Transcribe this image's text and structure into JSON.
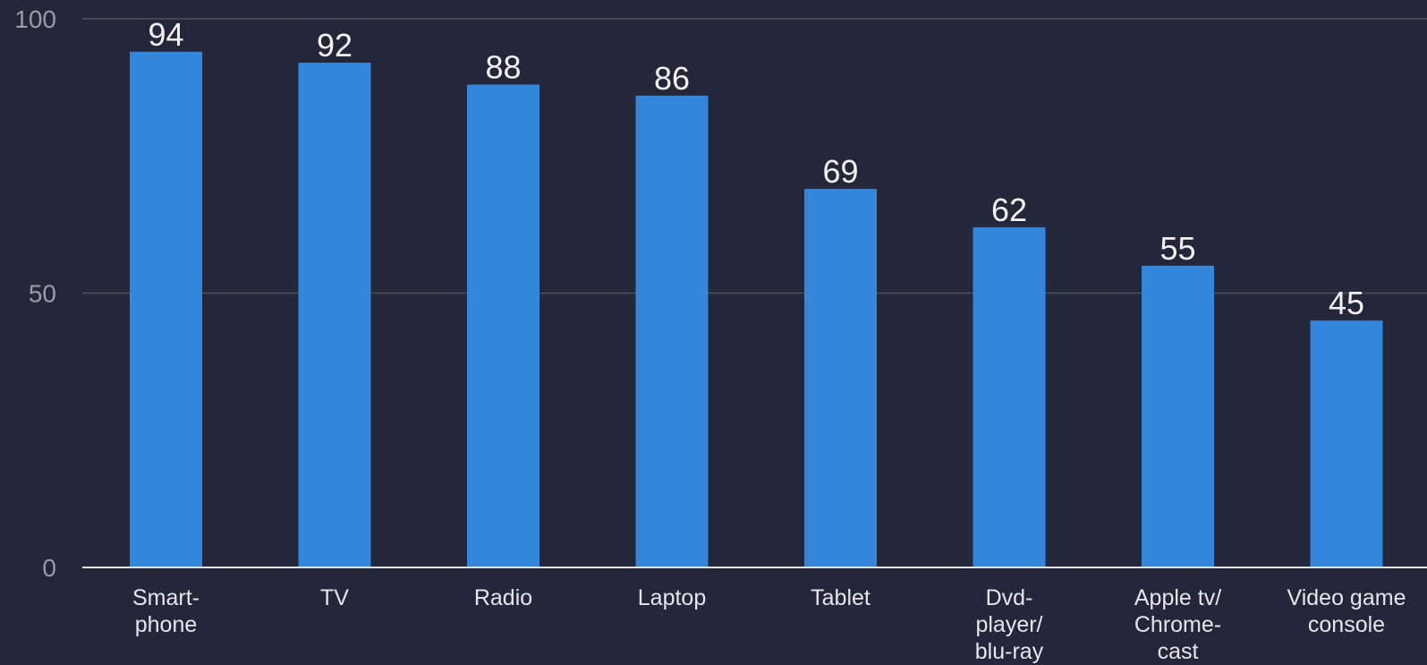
{
  "chart_data": {
    "type": "bar",
    "categories": [
      "Smart-\nphone",
      "TV",
      "Radio",
      "Laptop",
      "Tablet",
      "Dvd-\nplayer/\nblu-ray",
      "Apple tv/\nChrome-\ncast",
      "Video game\nconsole"
    ],
    "values": [
      94,
      92,
      88,
      86,
      69,
      62,
      55,
      45
    ],
    "ylim": [
      0,
      100
    ],
    "yticks": [
      "0",
      "50",
      "100"
    ],
    "grid": true,
    "legend": "none",
    "title": "",
    "xlabel": "",
    "ylabel": "",
    "colors": {
      "background": "#24263a",
      "bar": "#3286dc",
      "grid": "#50525f",
      "baseline": "#e6e6ea",
      "text": "#e6e6ea",
      "tick_text": "#9a9ba6"
    }
  }
}
